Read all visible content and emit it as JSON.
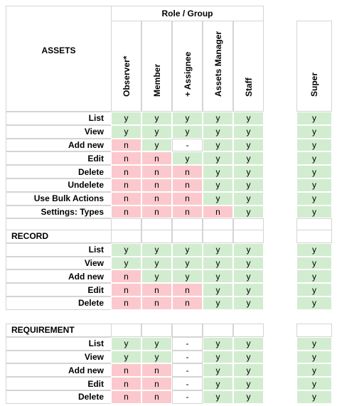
{
  "header": {
    "group_title": "Role / Group",
    "section_title": "ASSETS",
    "roles": [
      "Observer*",
      "Member",
      "+ Assignee",
      "Assets Manager",
      "Staff"
    ],
    "super_role": "Super"
  },
  "sections": [
    {
      "title": "ASSETS",
      "rows": [
        {
          "label": "List",
          "values": [
            "y",
            "y",
            "y",
            "y",
            "y"
          ],
          "super": "y"
        },
        {
          "label": "View",
          "values": [
            "y",
            "y",
            "y",
            "y",
            "y"
          ],
          "super": "y"
        },
        {
          "label": "Add new",
          "values": [
            "n",
            "y",
            "-",
            "y",
            "y"
          ],
          "super": "y"
        },
        {
          "label": "Edit",
          "values": [
            "n",
            "n",
            "y",
            "y",
            "y"
          ],
          "super": "y"
        },
        {
          "label": "Delete",
          "values": [
            "n",
            "n",
            "n",
            "y",
            "y"
          ],
          "super": "y"
        },
        {
          "label": "Undelete",
          "values": [
            "n",
            "n",
            "n",
            "y",
            "y"
          ],
          "super": "y"
        },
        {
          "label": "Use Bulk Actions",
          "values": [
            "n",
            "n",
            "n",
            "y",
            "y"
          ],
          "super": "y"
        },
        {
          "label": "Settings: Types",
          "values": [
            "n",
            "n",
            "n",
            "n",
            "y"
          ],
          "super": "y"
        }
      ]
    },
    {
      "title": "RECORD",
      "rows": [
        {
          "label": "List",
          "values": [
            "y",
            "y",
            "y",
            "y",
            "y"
          ],
          "super": "y"
        },
        {
          "label": "View",
          "values": [
            "y",
            "y",
            "y",
            "y",
            "y"
          ],
          "super": "y"
        },
        {
          "label": "Add new",
          "values": [
            "n",
            "y",
            "y",
            "y",
            "y"
          ],
          "super": "y"
        },
        {
          "label": "Edit",
          "values": [
            "n",
            "n",
            "n",
            "y",
            "y"
          ],
          "super": "y"
        },
        {
          "label": "Delete",
          "values": [
            "n",
            "n",
            "n",
            "y",
            "y"
          ],
          "super": "y"
        }
      ]
    },
    {
      "title": "REQUIREMENT",
      "rows": [
        {
          "label": "List",
          "values": [
            "y",
            "y",
            "-",
            "y",
            "y"
          ],
          "super": "y"
        },
        {
          "label": "View",
          "values": [
            "y",
            "y",
            "-",
            "y",
            "y"
          ],
          "super": "y"
        },
        {
          "label": "Add new",
          "values": [
            "n",
            "n",
            "-",
            "y",
            "y"
          ],
          "super": "y"
        },
        {
          "label": "Edit",
          "values": [
            "n",
            "n",
            "-",
            "y",
            "y"
          ],
          "super": "y"
        },
        {
          "label": "Delete",
          "values": [
            "n",
            "n",
            "-",
            "y",
            "y"
          ],
          "super": "y"
        }
      ]
    }
  ],
  "colors": {
    "yes": "#d2ecd0",
    "no": "#fbc9cd",
    "border": "#d4d4d4"
  }
}
